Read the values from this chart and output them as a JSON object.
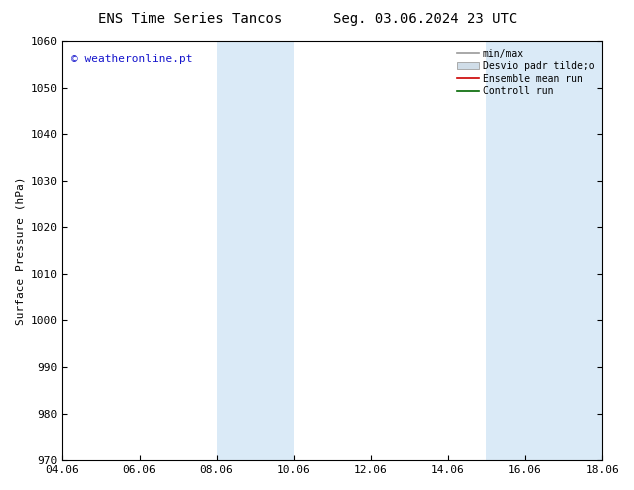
{
  "title_left": "ENS Time Series Tancos",
  "title_right": "Seg. 03.06.2024 23 UTC",
  "ylabel": "Surface Pressure (hPa)",
  "ylim": [
    970,
    1060
  ],
  "yticks": [
    970,
    980,
    990,
    1000,
    1010,
    1020,
    1030,
    1040,
    1050,
    1060
  ],
  "xlim_start": 0,
  "xlim_end": 14,
  "xtick_labels": [
    "04.06",
    "06.06",
    "08.06",
    "10.06",
    "12.06",
    "14.06",
    "16.06",
    "18.06"
  ],
  "xtick_positions": [
    0,
    2,
    4,
    6,
    8,
    10,
    12,
    14
  ],
  "shaded_bands": [
    {
      "xstart": 4.0,
      "xend": 6.0
    },
    {
      "xstart": 11.0,
      "xend": 14.0
    }
  ],
  "band_color": "#daeaf7",
  "watermark_text": "© weatheronline.pt",
  "watermark_color": "#1515cc",
  "legend_labels": [
    "min/max",
    "Desvio padr tilde;o",
    "Ensemble mean run",
    "Controll run"
  ],
  "bg_color": "#ffffff",
  "title_fontsize": 10,
  "axis_label_fontsize": 8,
  "tick_fontsize": 8,
  "watermark_fontsize": 8,
  "legend_fontsize": 7
}
